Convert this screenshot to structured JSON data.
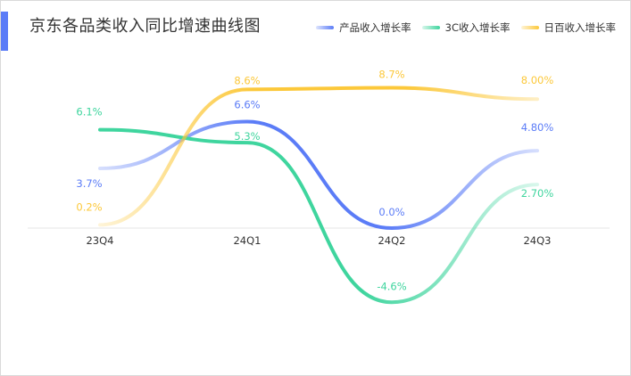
{
  "header": {
    "title": "京东各品类收入同比增速曲线图",
    "accent_color": "#5b7cf7"
  },
  "legend": [
    {
      "label": "产品收入增长率",
      "color": "#5b7cf7"
    },
    {
      "label": "3C收入增长率",
      "color": "#3fd59e"
    },
    {
      "label": "日百收入增长率",
      "color": "#fcc83a"
    }
  ],
  "chart_data": {
    "type": "line",
    "title": "京东各品类收入同比增速曲线图",
    "categories": [
      "23Q4",
      "24Q1",
      "24Q2",
      "24Q3"
    ],
    "ylim": [
      -4.6,
      8.7
    ],
    "grid": false,
    "legend_position": "top-right",
    "series": [
      {
        "name": "产品收入增长率",
        "color": "#5b7cf7",
        "values": [
          3.7,
          6.6,
          0.0,
          4.8
        ],
        "labels": [
          "3.7%",
          "6.6%",
          "0.0%",
          "4.80%"
        ]
      },
      {
        "name": "3C收入增长率",
        "color": "#3fd59e",
        "values": [
          6.1,
          5.3,
          -4.6,
          2.7
        ],
        "labels": [
          "6.1%",
          "5.3%",
          "-4.6%",
          "2.70%"
        ]
      },
      {
        "name": "日百收入增长率",
        "color": "#fcc83a",
        "values": [
          0.2,
          8.6,
          8.7,
          8.0
        ],
        "labels": [
          "0.2%",
          "8.6%",
          "8.7%",
          "8.00%"
        ]
      }
    ]
  }
}
